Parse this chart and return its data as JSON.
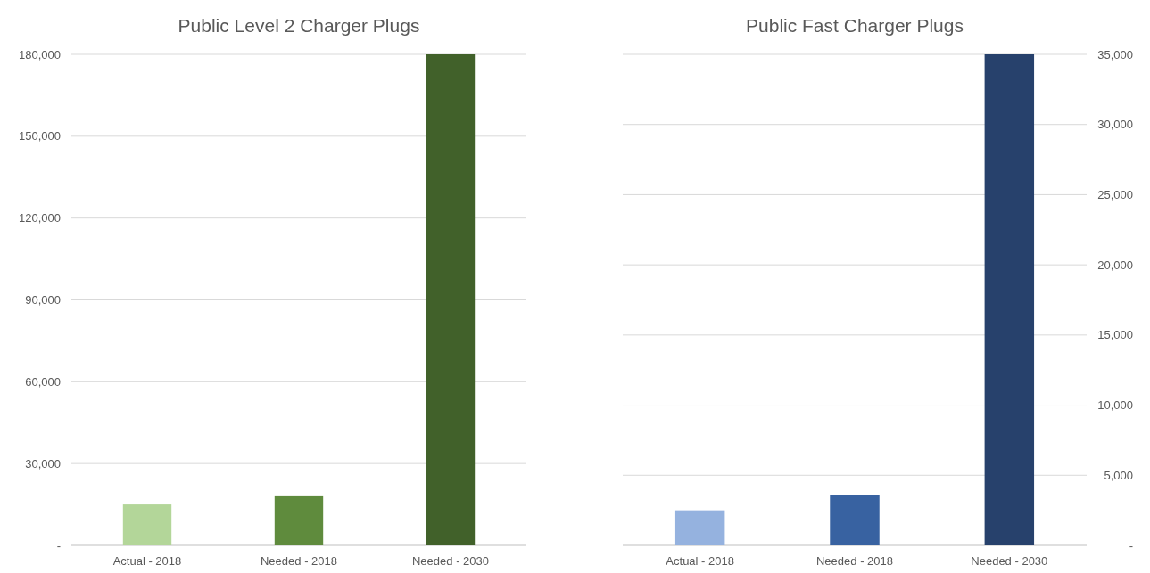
{
  "chart_data": [
    {
      "type": "bar",
      "title": "Public Level 2 Charger Plugs",
      "categories": [
        "Actual - 2018",
        "Needed - 2018",
        "Needed - 2030"
      ],
      "values": [
        15000,
        18000,
        180000
      ],
      "colors": [
        "#b3d699",
        "#5f8b3d",
        "#41612a"
      ],
      "ylim": [
        0,
        180000
      ],
      "yticks": [
        {
          "value": 0,
          "label": "-"
        },
        {
          "value": 30000,
          "label": "30,000"
        },
        {
          "value": 60000,
          "label": "60,000"
        },
        {
          "value": 90000,
          "label": "90,000"
        },
        {
          "value": 120000,
          "label": "120,000"
        },
        {
          "value": 150000,
          "label": "150,000"
        },
        {
          "value": 180000,
          "label": "180,000"
        }
      ],
      "grid": "y"
    },
    {
      "type": "bar",
      "title": "Public Fast Charger Plugs",
      "categories": [
        "Actual - 2018",
        "Needed - 2018",
        "Needed - 2030"
      ],
      "series": [
        {
          "values": [
            2500,
            3600,
            35000
          ],
          "colors": [
            "#95b2df",
            "#3862a1",
            "#27416c"
          ],
          "axis": "y2"
        }
      ],
      "y2lim": [
        0,
        35000
      ],
      "y2ticks": [
        {
          "value": 0,
          "label": "-"
        },
        {
          "value": 5000,
          "label": "5,000"
        },
        {
          "value": 10000,
          "label": "10,000"
        },
        {
          "value": 15000,
          "label": "15,000"
        },
        {
          "value": 20000,
          "label": "20,000"
        },
        {
          "value": 25000,
          "label": "25,000"
        },
        {
          "value": 30000,
          "label": "30,000"
        },
        {
          "value": 35000,
          "label": "35,000"
        }
      ],
      "grid": "y2"
    }
  ]
}
